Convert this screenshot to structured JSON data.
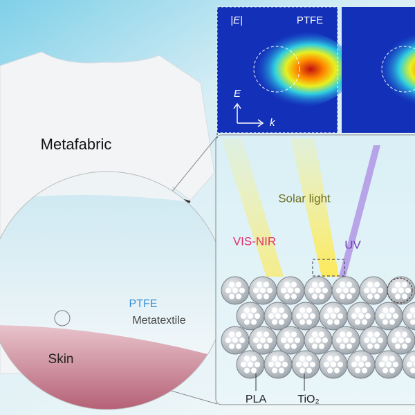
{
  "shirt": {
    "label": "Metafabric"
  },
  "magnifier": {
    "material": "PTFE",
    "layer": "Metatextile",
    "skin": "Skin"
  },
  "field_panel": {
    "quantity": "|E|",
    "material": "PTFE",
    "e_axis": "E",
    "k_axis": "k"
  },
  "scheme": {
    "source": "Solar light",
    "vis": "VIS-NIR",
    "uv": "UV",
    "fiber": "PLA",
    "particle": "TiO₂"
  }
}
